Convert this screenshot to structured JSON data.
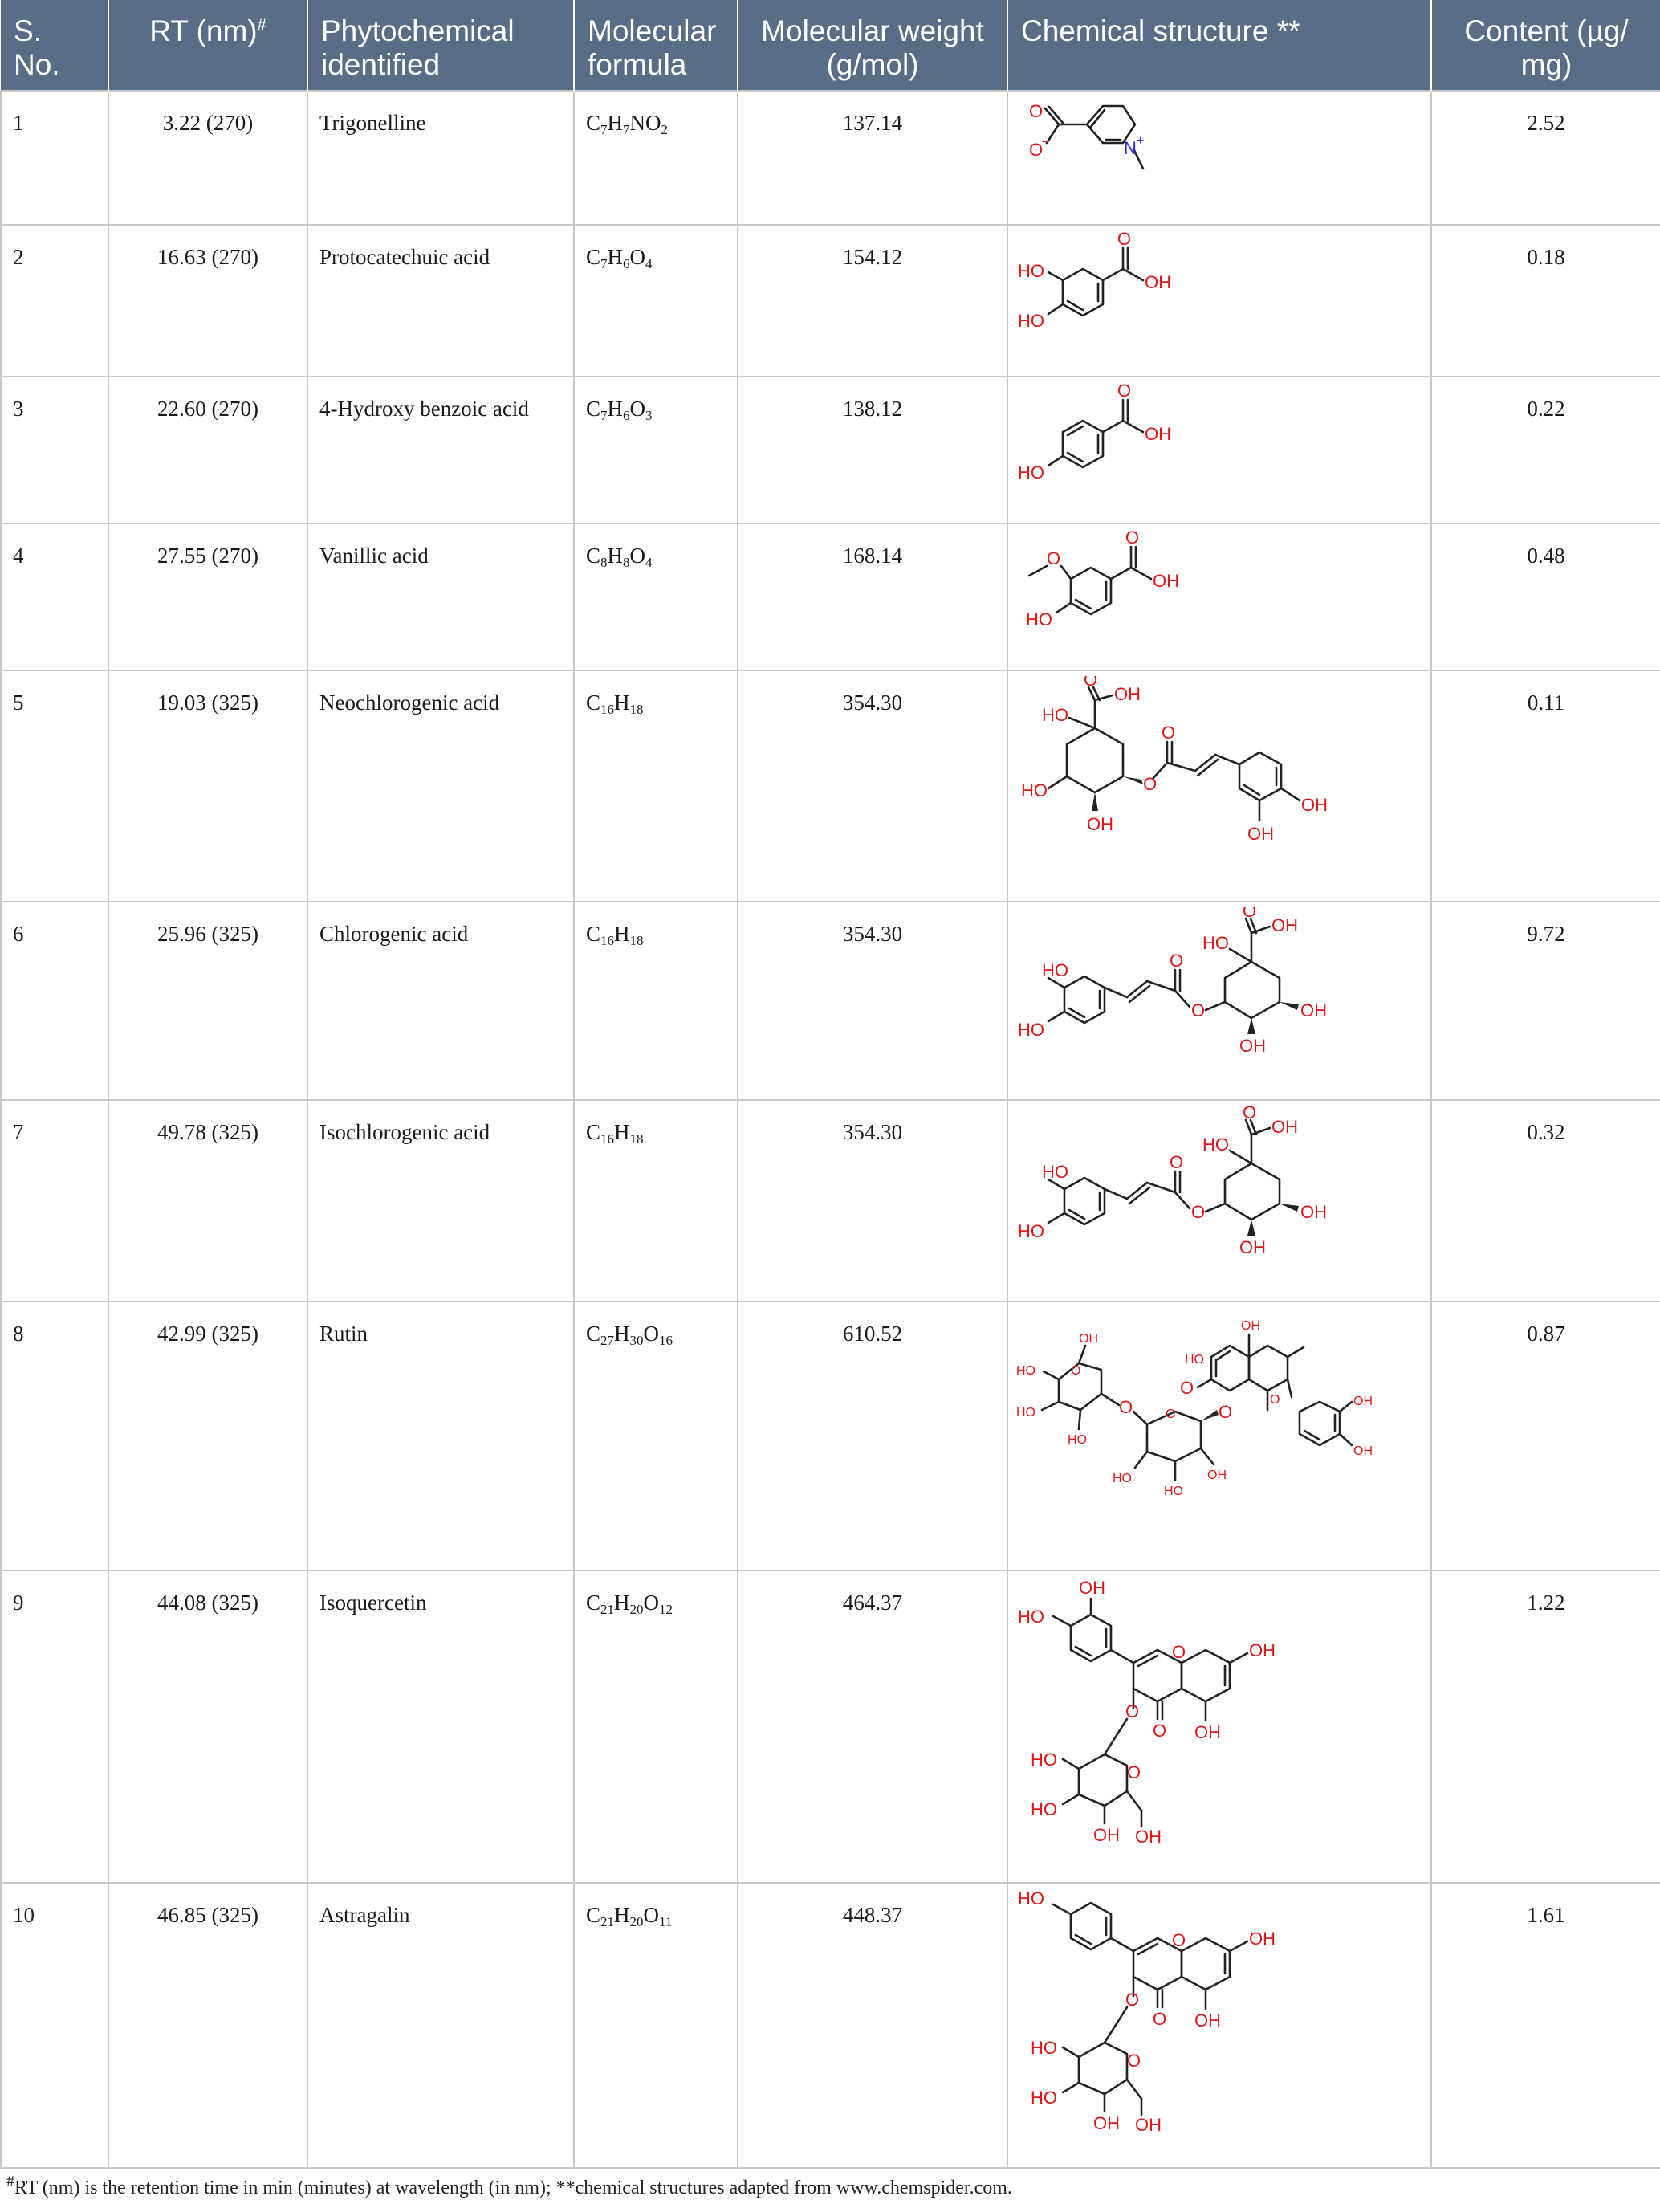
{
  "headers": {
    "sno": "S. No.",
    "rt": "RT (nm)",
    "rt_mark": "#",
    "phyto": "Phytochemical identified",
    "formula": "Molecular formula",
    "mw": "Molecular weight (g/mol)",
    "structure": "Chemical structure **",
    "content": "Content (µg/ mg)"
  },
  "rows": [
    {
      "sno": "1",
      "rt": "3.22 (270)",
      "name": "Trigonelline",
      "formula": [
        [
          "C",
          "7"
        ],
        [
          "H",
          "7"
        ],
        [
          "NO",
          "2"
        ]
      ],
      "mw": "137.14",
      "content": "2.52"
    },
    {
      "sno": "2",
      "rt": "16.63 (270)",
      "name": "Protocatechuic acid",
      "formula": [
        [
          "C",
          "7"
        ],
        [
          "H",
          "6"
        ],
        [
          "O",
          "4"
        ]
      ],
      "mw": "154.12",
      "content": "0.18"
    },
    {
      "sno": "3",
      "rt": "22.60 (270)",
      "name": "4-Hydroxy benzoic acid",
      "formula": [
        [
          "C",
          "7"
        ],
        [
          "H",
          "6"
        ],
        [
          "O",
          "3"
        ]
      ],
      "mw": "138.12",
      "content": "0.22"
    },
    {
      "sno": "4",
      "rt": "27.55 (270)",
      "name": "Vanillic acid",
      "formula": [
        [
          "C",
          "8"
        ],
        [
          "H",
          "8"
        ],
        [
          "O",
          "4"
        ]
      ],
      "mw": "168.14",
      "content": "0.48"
    },
    {
      "sno": "5",
      "rt": "19.03 (325)",
      "name": "Neochlorogenic acid",
      "formula": [
        [
          "C",
          "16"
        ],
        [
          "H",
          "18"
        ]
      ],
      "mw": "354.30",
      "content": "0.11"
    },
    {
      "sno": "6",
      "rt": "25.96 (325)",
      "name": "Chlorogenic acid",
      "formula": [
        [
          "C",
          "16"
        ],
        [
          "H",
          "18"
        ]
      ],
      "mw": "354.30",
      "content": "9.72"
    },
    {
      "sno": "7",
      "rt": "49.78 (325)",
      "name": "Isochlorogenic acid",
      "formula": [
        [
          "C",
          "16"
        ],
        [
          "H",
          "18"
        ]
      ],
      "mw": "354.30",
      "content": "0.32"
    },
    {
      "sno": "8",
      "rt": "42.99 (325)",
      "name": "Rutin",
      "formula": [
        [
          "C",
          "27"
        ],
        [
          "H",
          "30"
        ],
        [
          "O",
          "16"
        ]
      ],
      "mw": "610.52",
      "content": "0.87"
    },
    {
      "sno": "9",
      "rt": "44.08 (325)",
      "name": "Isoquercetin",
      "formula": [
        [
          "C",
          "21"
        ],
        [
          "H",
          "20"
        ],
        [
          "O",
          "12"
        ]
      ],
      "mw": "464.37",
      "content": "1.22"
    },
    {
      "sno": "10",
      "rt": "46.85 (325)",
      "name": "Astragalin",
      "formula": [
        [
          "C",
          "21"
        ],
        [
          "H",
          "20"
        ],
        [
          "O",
          "11"
        ]
      ],
      "mw": "448.37",
      "content": "1.61"
    }
  ],
  "structure_labels": {
    "o": "O",
    "o_minus": "O",
    "minus": "−",
    "n": "N",
    "plus": "+",
    "ho": "HO",
    "oh": "OH"
  },
  "footnote": {
    "mark": "#",
    "text": "RT (nm) is the retention time in min (minutes) at wavelength (in nm); **chemical structures adapted from www.chemspider.com."
  }
}
